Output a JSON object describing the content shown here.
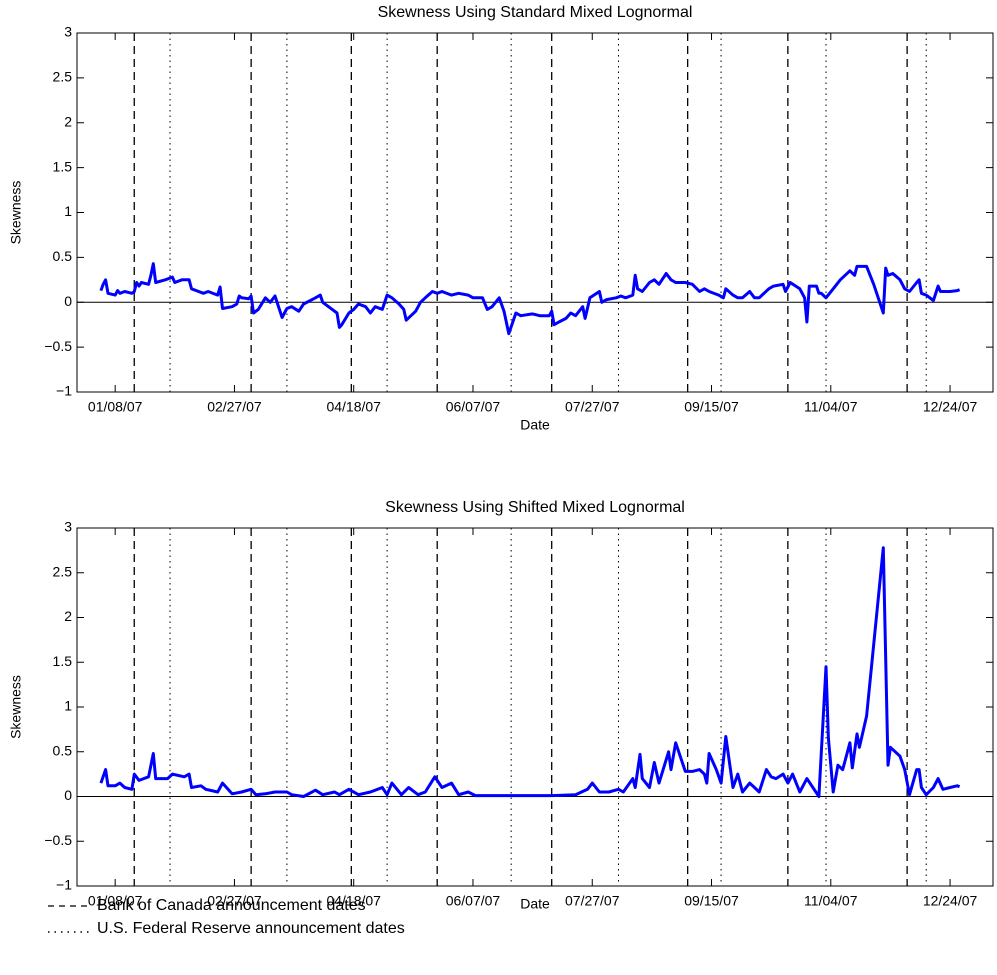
{
  "chart_data": [
    {
      "type": "line",
      "title": "Skewness Using Standard Mixed Lognormal",
      "x_label": "Date",
      "y_label": "Skewness",
      "xlim": [
        "12/23/06",
        "01/11/08"
      ],
      "xticks": [
        "01/08/07",
        "02/27/07",
        "04/18/07",
        "06/07/07",
        "07/27/07",
        "09/15/07",
        "11/04/07",
        "12/24/07"
      ],
      "ylim": [
        -1,
        3
      ],
      "yticks": [
        {
          "value": -1,
          "label": "−1"
        },
        {
          "value": -0.5,
          "label": "−0.5"
        },
        0,
        0.5,
        1,
        1.5,
        2,
        2.5,
        3
      ],
      "x": [
        "01/02/07",
        "01/03/07",
        "01/04/07",
        "01/05/07",
        "01/08/07",
        "01/09/07",
        "01/10/07",
        "01/12/07",
        "01/15/07",
        "01/16/07",
        "01/17/07",
        "01/18/07",
        "01/19/07",
        "01/22/07",
        "01/23/07",
        "01/24/07",
        "01/25/07",
        "01/29/07",
        "02/01/07",
        "02/02/07",
        "02/05/07",
        "02/08/07",
        "02/09/07",
        "02/12/07",
        "02/14/07",
        "02/16/07",
        "02/20/07",
        "02/21/07",
        "02/22/07",
        "02/26/07",
        "02/28/07",
        "03/01/07",
        "03/02/07",
        "03/05/07",
        "03/06/07",
        "03/07/07",
        "03/09/07",
        "03/12/07",
        "03/14/07",
        "03/16/07",
        "03/19/07",
        "03/21/07",
        "03/23/07",
        "03/26/07",
        "03/28/07",
        "04/02/07",
        "04/04/07",
        "04/05/07",
        "04/09/07",
        "04/11/07",
        "04/12/07",
        "04/13/07",
        "04/16/07",
        "04/18/07",
        "04/20/07",
        "04/23/07",
        "04/25/07",
        "04/27/07",
        "04/30/07",
        "05/02/07",
        "05/04/07",
        "05/07/07",
        "05/09/07",
        "05/10/07",
        "05/14/07",
        "05/16/07",
        "05/18/07",
        "05/21/07",
        "05/23/07",
        "05/25/07",
        "05/29/07",
        "06/01/07",
        "06/05/07",
        "06/07/07",
        "06/11/07",
        "06/13/07",
        "06/15/07",
        "06/18/07",
        "06/20/07",
        "06/22/07",
        "06/25/07",
        "06/27/07",
        "07/02/07",
        "07/05/07",
        "07/09/07",
        "07/10/07",
        "07/11/07",
        "07/13/07",
        "07/16/07",
        "07/18/07",
        "07/20/07",
        "07/23/07",
        "07/24/07",
        "07/26/07",
        "07/30/07",
        "07/31/07",
        "08/02/07",
        "08/06/07",
        "08/08/07",
        "08/10/07",
        "08/13/07",
        "08/14/07",
        "08/15/07",
        "08/17/07",
        "08/20/07",
        "08/22/07",
        "08/24/07",
        "08/27/07",
        "08/29/07",
        "08/31/07",
        "09/04/07",
        "09/07/07",
        "09/10/07",
        "09/12/07",
        "09/14/07",
        "09/18/07",
        "09/20/07",
        "09/21/07",
        "09/24/07",
        "09/26/07",
        "09/28/07",
        "10/01/07",
        "10/03/07",
        "10/05/07",
        "10/09/07",
        "10/11/07",
        "10/15/07",
        "10/16/07",
        "10/18/07",
        "10/22/07",
        "10/24/07",
        "10/25/07",
        "10/26/07",
        "10/29/07",
        "10/30/07",
        "10/31/07",
        "11/02/07",
        "11/05/07",
        "11/08/07",
        "11/12/07",
        "11/14/07",
        "11/15/07",
        "11/19/07",
        "11/22/07",
        "11/26/07",
        "11/27/07",
        "11/28/07",
        "11/30/07",
        "12/03/07",
        "12/05/07",
        "12/07/07",
        "12/10/07",
        "12/11/07",
        "12/12/07",
        "12/14/07",
        "12/17/07",
        "12/19/07",
        "12/20/07",
        "12/24/07",
        "12/27/07",
        "12/28/07"
      ],
      "series": [
        {
          "color": "#0000ff",
          "values": [
            0.13,
            0.2,
            0.25,
            0.1,
            0.08,
            0.13,
            0.1,
            0.12,
            0.1,
            0.12,
            0.22,
            0.18,
            0.22,
            0.2,
            0.3,
            0.43,
            0.22,
            0.25,
            0.28,
            0.22,
            0.25,
            0.25,
            0.15,
            0.12,
            0.1,
            0.12,
            0.08,
            0.17,
            -0.07,
            -0.05,
            -0.02,
            0.07,
            0.05,
            0.04,
            0.07,
            -0.12,
            -0.08,
            0.05,
            0.0,
            0.07,
            -0.17,
            -0.07,
            -0.05,
            -0.1,
            -0.02,
            0.05,
            0.08,
            0.0,
            -0.08,
            -0.12,
            -0.28,
            -0.25,
            -0.12,
            -0.08,
            -0.02,
            -0.05,
            -0.12,
            -0.05,
            -0.08,
            0.08,
            0.05,
            -0.02,
            -0.08,
            -0.2,
            -0.1,
            0.0,
            0.05,
            0.12,
            0.1,
            0.12,
            0.08,
            0.1,
            0.08,
            0.05,
            0.05,
            -0.08,
            -0.05,
            0.05,
            -0.1,
            -0.35,
            -0.12,
            -0.15,
            -0.13,
            -0.15,
            -0.15,
            -0.1,
            -0.25,
            -0.22,
            -0.18,
            -0.12,
            -0.15,
            -0.05,
            -0.18,
            0.05,
            0.12,
            0.0,
            0.03,
            0.05,
            0.07,
            0.05,
            0.08,
            0.3,
            0.15,
            0.12,
            0.22,
            0.25,
            0.2,
            0.32,
            0.25,
            0.22,
            0.22,
            0.2,
            0.12,
            0.15,
            0.12,
            0.08,
            0.05,
            0.15,
            0.08,
            0.05,
            0.05,
            0.12,
            0.05,
            0.05,
            0.15,
            0.18,
            0.2,
            0.12,
            0.22,
            0.15,
            0.05,
            -0.22,
            0.18,
            0.18,
            0.1,
            0.1,
            0.05,
            0.15,
            0.25,
            0.35,
            0.3,
            0.4,
            0.4,
            0.2,
            -0.12,
            0.38,
            0.3,
            0.32,
            0.25,
            0.15,
            0.12,
            0.22,
            0.25,
            0.1,
            0.08,
            0.02,
            0.18,
            0.12,
            0.12,
            0.13,
            0.14
          ]
        }
      ]
    },
    {
      "type": "line",
      "title": "Skewness Using Shifted Mixed Lognormal",
      "x_label": "Date",
      "y_label": "Skewness",
      "xlim": [
        "12/23/06",
        "01/11/08"
      ],
      "xticks": [
        "01/08/07",
        "02/27/07",
        "04/18/07",
        "06/07/07",
        "07/27/07",
        "09/15/07",
        "11/04/07",
        "12/24/07"
      ],
      "ylim": [
        -1,
        3
      ],
      "yticks": [
        {
          "value": -1,
          "label": "−1"
        },
        {
          "value": -0.5,
          "label": "−0.5"
        },
        0,
        0.5,
        1,
        1.5,
        2,
        2.5,
        3
      ],
      "x": [
        "01/02/07",
        "01/04/07",
        "01/05/07",
        "01/08/07",
        "01/10/07",
        "01/12/07",
        "01/15/07",
        "01/16/07",
        "01/18/07",
        "01/22/07",
        "01/24/07",
        "01/25/07",
        "01/30/07",
        "02/01/07",
        "02/06/07",
        "02/08/07",
        "02/09/07",
        "02/13/07",
        "02/15/07",
        "02/20/07",
        "02/22/07",
        "02/26/07",
        "03/02/07",
        "03/06/07",
        "03/08/07",
        "03/12/07",
        "03/16/07",
        "03/21/07",
        "03/23/07",
        "03/28/07",
        "04/02/07",
        "04/05/07",
        "04/10/07",
        "04/12/07",
        "04/16/07",
        "04/20/07",
        "04/25/07",
        "04/30/07",
        "05/02/07",
        "05/04/07",
        "05/08/07",
        "05/11/07",
        "05/15/07",
        "05/18/07",
        "05/22/07",
        "05/25/07",
        "05/29/07",
        "06/01/07",
        "06/05/07",
        "06/08/07",
        "06/15/07",
        "06/22/07",
        "07/02/07",
        "07/10/07",
        "07/20/07",
        "07/25/07",
        "07/27/07",
        "07/30/07",
        "08/03/07",
        "08/07/07",
        "08/09/07",
        "08/13/07",
        "08/14/07",
        "08/16/07",
        "08/17/07",
        "08/20/07",
        "08/22/07",
        "08/24/07",
        "08/28/07",
        "08/29/07",
        "08/31/07",
        "09/04/07",
        "09/07/07",
        "09/10/07",
        "09/12/07",
        "09/13/07",
        "09/14/07",
        "09/17/07",
        "09/19/07",
        "09/21/07",
        "09/24/07",
        "09/26/07",
        "09/28/07",
        "10/01/07",
        "10/03/07",
        "10/05/07",
        "10/08/07",
        "10/10/07",
        "10/12/07",
        "10/15/07",
        "10/17/07",
        "10/19/07",
        "10/22/07",
        "10/25/07",
        "10/30/07",
        "11/02/07",
        "11/03/07",
        "11/05/07",
        "11/07/07",
        "11/09/07",
        "11/12/07",
        "11/13/07",
        "11/15/07",
        "11/16/07",
        "11/19/07",
        "11/26/07",
        "11/28/07",
        "11/29/07",
        "12/03/07",
        "12/05/07",
        "12/07/07",
        "12/10/07",
        "12/11/07",
        "12/12/07",
        "12/14/07",
        "12/17/07",
        "12/19/07",
        "12/21/07",
        "12/24/07",
        "12/27/07",
        "12/28/07"
      ],
      "series": [
        {
          "color": "#0000ff",
          "values": [
            0.15,
            0.3,
            0.12,
            0.12,
            0.15,
            0.1,
            0.08,
            0.25,
            0.18,
            0.22,
            0.48,
            0.2,
            0.2,
            0.25,
            0.22,
            0.25,
            0.1,
            0.12,
            0.08,
            0.05,
            0.15,
            0.03,
            0.05,
            0.08,
            0.02,
            0.03,
            0.05,
            0.05,
            0.02,
            0.0,
            0.07,
            0.02,
            0.05,
            0.02,
            0.08,
            0.02,
            0.05,
            0.1,
            0.02,
            0.15,
            0.02,
            0.1,
            0.02,
            0.05,
            0.22,
            0.1,
            0.15,
            0.02,
            0.05,
            0.01,
            0.01,
            0.01,
            0.01,
            0.01,
            0.02,
            0.08,
            0.15,
            0.05,
            0.05,
            0.08,
            0.05,
            0.2,
            0.1,
            0.47,
            0.2,
            0.1,
            0.38,
            0.15,
            0.5,
            0.3,
            0.6,
            0.28,
            0.28,
            0.3,
            0.25,
            0.15,
            0.48,
            0.3,
            0.15,
            0.67,
            0.1,
            0.25,
            0.05,
            0.15,
            0.1,
            0.05,
            0.3,
            0.22,
            0.2,
            0.25,
            0.15,
            0.25,
            0.05,
            0.2,
            0.0,
            1.45,
            0.65,
            0.05,
            0.35,
            0.3,
            0.6,
            0.32,
            0.7,
            0.55,
            0.9,
            2.78,
            0.35,
            0.55,
            0.45,
            0.3,
            0.02,
            0.3,
            0.3,
            0.1,
            0.02,
            0.1,
            0.2,
            0.08,
            0.1,
            0.12,
            0.11
          ]
        }
      ]
    }
  ],
  "reference_lines": [
    {
      "name": "Bank of Canada announcement dates",
      "dash": "dashed",
      "x": [
        "01/16/07",
        "03/06/07",
        "04/17/07",
        "05/23/07",
        "07/10/07",
        "09/05/07",
        "10/17/07",
        "12/06/07"
      ]
    },
    {
      "name": "U.S. Federal Reserve announcement dates",
      "dash": "dotted",
      "x": [
        "01/31/07",
        "03/21/07",
        "05/02/07",
        "06/23/07",
        "08/07/07",
        "09/19/07",
        "11/02/07",
        "12/14/07"
      ]
    }
  ]
}
